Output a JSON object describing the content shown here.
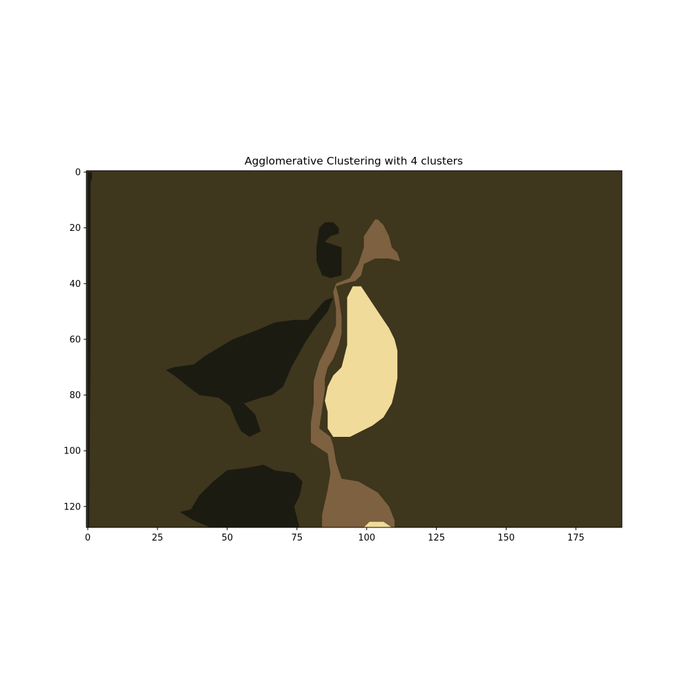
{
  "chart_data": {
    "type": "heatmap",
    "title": "Agglomerative Clustering with 4 clusters",
    "xlabel": "",
    "ylabel": "",
    "xlim": [
      -0.5,
      191.5
    ],
    "ylim": [
      127.5,
      -0.5
    ],
    "x_ticks": [
      0,
      25,
      50,
      75,
      100,
      125,
      150,
      175
    ],
    "y_ticks": [
      0,
      20,
      40,
      60,
      80,
      100,
      120
    ],
    "grid": false,
    "legend": "none",
    "image_width": 192,
    "image_height": 128,
    "cluster_colors": {
      "background": "#3e361d",
      "dark": "#1b1b11",
      "mid": "#7d6140",
      "light": "#f0db9a"
    },
    "regions": [
      {
        "cluster": "dark",
        "polygon": [
          [
            83,
            20
          ],
          [
            85,
            18
          ],
          [
            88,
            18
          ],
          [
            90,
            20
          ],
          [
            90,
            22
          ],
          [
            87,
            23
          ],
          [
            85,
            25
          ],
          [
            91,
            27
          ],
          [
            91,
            31
          ],
          [
            91,
            37
          ],
          [
            87,
            38
          ],
          [
            84,
            37
          ],
          [
            82,
            32
          ],
          [
            82,
            27
          ]
        ]
      },
      {
        "cluster": "dark",
        "polygon": [
          [
            0,
            0
          ],
          [
            1.5,
            0
          ],
          [
            1.5,
            2
          ],
          [
            1,
            4
          ],
          [
            1,
            60
          ],
          [
            0.5,
            128
          ],
          [
            0,
            128
          ]
        ]
      },
      {
        "cluster": "dark",
        "polygon": [
          [
            85,
            46
          ],
          [
            88,
            45
          ],
          [
            86,
            50
          ],
          [
            82,
            55
          ],
          [
            78,
            61
          ],
          [
            73,
            70
          ],
          [
            70,
            77
          ],
          [
            66,
            80
          ],
          [
            62,
            81
          ],
          [
            56,
            83
          ],
          [
            60,
            87
          ],
          [
            62,
            93
          ],
          [
            58,
            95
          ],
          [
            55,
            93
          ],
          [
            53,
            89
          ],
          [
            51,
            84
          ],
          [
            47,
            81
          ],
          [
            40,
            80
          ],
          [
            36,
            77
          ],
          [
            31,
            73
          ],
          [
            28,
            71
          ],
          [
            31,
            70
          ],
          [
            38,
            69
          ],
          [
            42,
            66
          ],
          [
            47,
            63
          ],
          [
            52,
            60
          ],
          [
            60,
            57
          ],
          [
            67,
            54
          ],
          [
            74,
            53
          ],
          [
            79,
            53
          ]
        ]
      },
      {
        "cluster": "dark",
        "polygon": [
          [
            50,
            107
          ],
          [
            58,
            106
          ],
          [
            63,
            105
          ],
          [
            67,
            107
          ],
          [
            74,
            108
          ],
          [
            77,
            111
          ],
          [
            76,
            116
          ],
          [
            74,
            120
          ],
          [
            76,
            128
          ],
          [
            45,
            128
          ],
          [
            38,
            125
          ],
          [
            33,
            122
          ],
          [
            37,
            121
          ],
          [
            40,
            116
          ],
          [
            43,
            113
          ],
          [
            45,
            111
          ]
        ]
      },
      {
        "cluster": "mid",
        "polygon": [
          [
            101,
            20
          ],
          [
            103,
            17
          ],
          [
            104,
            17
          ],
          [
            106,
            19
          ],
          [
            108,
            23
          ],
          [
            109,
            27
          ],
          [
            111,
            29
          ],
          [
            112,
            32
          ],
          [
            108,
            31
          ],
          [
            103,
            31
          ],
          [
            99,
            33
          ],
          [
            98,
            37
          ],
          [
            96,
            39
          ],
          [
            92,
            40
          ],
          [
            89,
            41
          ],
          [
            90,
            45
          ],
          [
            91,
            52
          ],
          [
            91,
            58
          ],
          [
            90,
            62
          ],
          [
            88,
            67
          ],
          [
            86,
            70
          ],
          [
            85,
            74
          ],
          [
            85,
            78
          ],
          [
            84,
            85
          ],
          [
            83,
            92
          ],
          [
            87,
            95
          ],
          [
            88,
            98
          ],
          [
            89,
            104
          ],
          [
            91,
            110
          ],
          [
            97,
            111
          ],
          [
            104,
            115
          ],
          [
            108,
            120
          ],
          [
            110,
            125
          ],
          [
            110,
            128
          ],
          [
            84,
            128
          ],
          [
            84,
            123
          ],
          [
            86,
            114
          ],
          [
            87,
            108
          ],
          [
            86,
            101
          ],
          [
            80,
            97
          ],
          [
            80,
            90
          ],
          [
            81,
            83
          ],
          [
            81,
            75
          ],
          [
            83,
            68
          ],
          [
            86,
            62
          ],
          [
            89,
            55
          ],
          [
            89,
            49
          ],
          [
            88,
            43
          ],
          [
            89,
            40
          ],
          [
            94,
            38
          ],
          [
            97,
            33
          ],
          [
            99,
            27
          ],
          [
            99,
            23
          ]
        ]
      },
      {
        "cluster": "light",
        "polygon": [
          [
            95,
            41
          ],
          [
            98,
            41
          ],
          [
            100,
            44
          ],
          [
            102,
            47
          ],
          [
            104,
            50
          ],
          [
            106,
            53
          ],
          [
            108,
            56
          ],
          [
            110,
            60
          ],
          [
            111,
            64
          ],
          [
            111,
            69
          ],
          [
            111,
            74
          ],
          [
            110,
            79
          ],
          [
            109,
            83
          ],
          [
            106,
            88
          ],
          [
            102,
            91
          ],
          [
            98,
            93
          ],
          [
            94,
            95
          ],
          [
            88,
            95
          ],
          [
            86,
            92
          ],
          [
            86,
            86
          ],
          [
            85,
            82
          ],
          [
            86,
            77
          ],
          [
            88,
            73
          ],
          [
            91,
            70
          ],
          [
            92,
            66
          ],
          [
            93,
            62
          ],
          [
            93,
            56
          ],
          [
            93,
            51
          ],
          [
            93,
            45
          ]
        ]
      },
      {
        "cluster": "light",
        "polygon": [
          [
            99,
            127.5
          ],
          [
            101,
            125.5
          ],
          [
            106,
            125.5
          ],
          [
            109,
            127.5
          ]
        ]
      }
    ]
  }
}
